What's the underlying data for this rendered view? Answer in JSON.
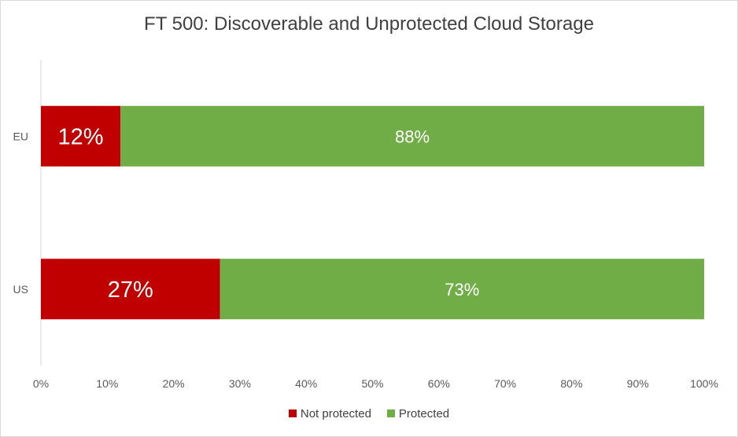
{
  "chart_data": {
    "type": "bar",
    "orientation": "horizontal",
    "stacked": "percent",
    "title": "FT 500: Discoverable and Unprotected Cloud Storage",
    "categories": [
      "EU",
      "US"
    ],
    "series": [
      {
        "name": "Not protected",
        "color": "#c00000",
        "values": [
          12,
          27
        ],
        "labels": [
          "12%",
          "27%"
        ]
      },
      {
        "name": "Protected",
        "color": "#70ad47",
        "values": [
          88,
          73
        ],
        "labels": [
          "88%",
          "73%"
        ]
      }
    ],
    "x_ticks": [
      "0%",
      "10%",
      "20%",
      "30%",
      "40%",
      "50%",
      "60%",
      "70%",
      "80%",
      "90%",
      "100%"
    ],
    "xlim": [
      0,
      100
    ],
    "grid": false,
    "legend_position": "bottom"
  }
}
